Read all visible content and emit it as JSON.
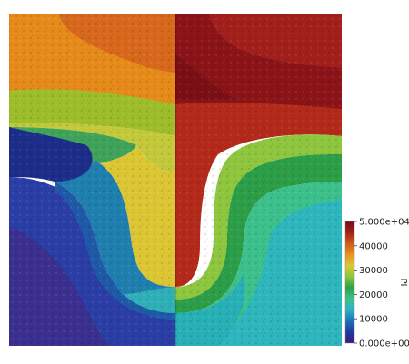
{
  "chart_data": {
    "type": "heatmap",
    "title": "",
    "field_name": "PI",
    "range": [
      0,
      50000
    ],
    "colorbar": {
      "title": "PI",
      "ticks": [
        {
          "value": 50000,
          "label": "5.000e+04"
        },
        {
          "value": 40000,
          "label": "40000"
        },
        {
          "value": 30000,
          "label": "30000"
        },
        {
          "value": 20000,
          "label": "20000"
        },
        {
          "value": 10000,
          "label": "10000"
        },
        {
          "value": 0,
          "label": "0.000e+00"
        }
      ],
      "colormap": [
        "#3a1a7a",
        "#1f3aa0",
        "#1f6fb5",
        "#2eb2c8",
        "#3fc18a",
        "#27a14a",
        "#8cc63a",
        "#d8c83a",
        "#e6951e",
        "#d15a1a",
        "#a42019",
        "#6e0f17"
      ],
      "placement": "right"
    },
    "color_levels": 12
  }
}
